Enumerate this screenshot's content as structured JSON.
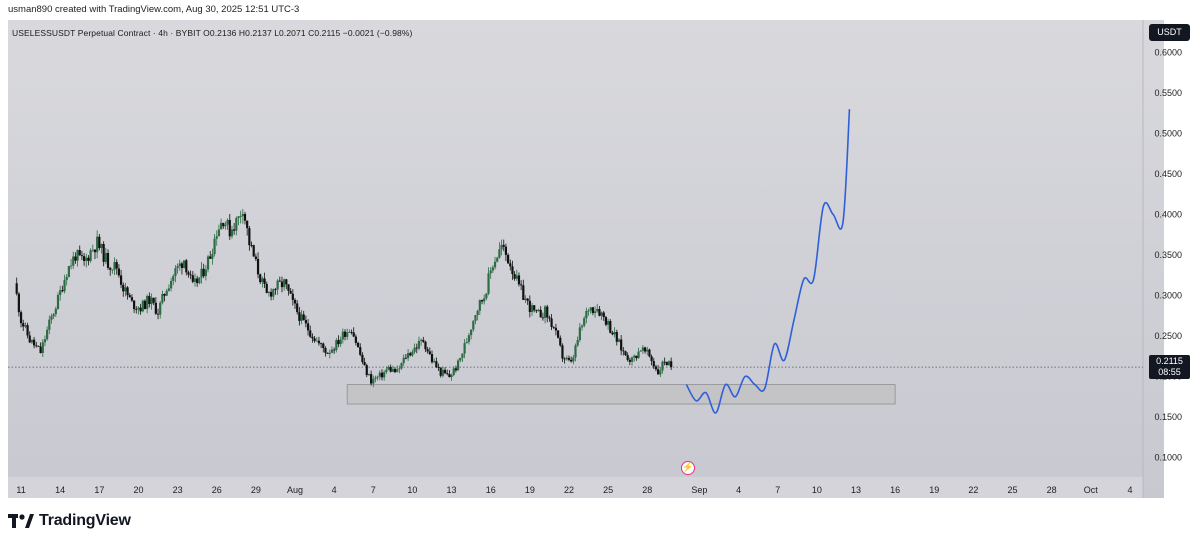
{
  "caption": "usman890 created with TradingView.com, Aug 30, 2025 12:51 UTC-3",
  "header": {
    "symbol_line": "USELESSUSDT Perpetual Contract · 4h · BYBIT  O0.2136  H0.2137  L0.2071  C0.2115  −0.0021 (−0.98%)",
    "currency": "USDT"
  },
  "price_label": {
    "price": "0.2115",
    "countdown": "08:55"
  },
  "logo_text": "TradingView",
  "icons": {
    "logo": "tradingview-logo-icon",
    "event": "lightning-icon"
  },
  "colors": {
    "up": "#2d6b45",
    "down": "#111111",
    "projection": "#2f5fd8",
    "zone_fill": "#c4c4c6"
  },
  "chart_data": {
    "type": "candlestick",
    "title": "",
    "xlabel": "",
    "ylabel": "",
    "y_scale": "linear",
    "ylim": [
      0.05,
      0.64
    ],
    "yticks": [
      0.1,
      0.15,
      0.2,
      0.25,
      0.3,
      0.35,
      0.4,
      0.45,
      0.5,
      0.55,
      0.6
    ],
    "ytick_labels": [
      "0.1000",
      "0.1500",
      "0.2000",
      "0.2500",
      "0.3000",
      "0.3500",
      "0.4000",
      "0.4500",
      "0.5000",
      "0.5500",
      "0.6000"
    ],
    "xlim": [
      "2025-07-10",
      "2025-10-05"
    ],
    "xticks": [
      {
        "label": "11",
        "date": "2025-07-11"
      },
      {
        "label": "14",
        "date": "2025-07-14"
      },
      {
        "label": "17",
        "date": "2025-07-17"
      },
      {
        "label": "20",
        "date": "2025-07-20"
      },
      {
        "label": "23",
        "date": "2025-07-23"
      },
      {
        "label": "26",
        "date": "2025-07-26"
      },
      {
        "label": "29",
        "date": "2025-07-29"
      },
      {
        "label": "Aug",
        "date": "2025-08-01"
      },
      {
        "label": "4",
        "date": "2025-08-04"
      },
      {
        "label": "7",
        "date": "2025-08-07"
      },
      {
        "label": "10",
        "date": "2025-08-10"
      },
      {
        "label": "13",
        "date": "2025-08-13"
      },
      {
        "label": "16",
        "date": "2025-08-16"
      },
      {
        "label": "19",
        "date": "2025-08-19"
      },
      {
        "label": "22",
        "date": "2025-08-22"
      },
      {
        "label": "25",
        "date": "2025-08-25"
      },
      {
        "label": "28",
        "date": "2025-08-28"
      },
      {
        "label": "Sep",
        "date": "2025-09-01"
      },
      {
        "label": "4",
        "date": "2025-09-04"
      },
      {
        "label": "7",
        "date": "2025-09-07"
      },
      {
        "label": "10",
        "date": "2025-09-10"
      },
      {
        "label": "13",
        "date": "2025-09-13"
      },
      {
        "label": "16",
        "date": "2025-09-16"
      },
      {
        "label": "19",
        "date": "2025-09-19"
      },
      {
        "label": "22",
        "date": "2025-09-22"
      },
      {
        "label": "25",
        "date": "2025-09-25"
      },
      {
        "label": "28",
        "date": "2025-09-28"
      },
      {
        "label": "Oct",
        "date": "2025-10-01"
      },
      {
        "label": "4",
        "date": "2025-10-04"
      }
    ],
    "close_path": [
      [
        "2025-07-10T12:00",
        0.315
      ],
      [
        "2025-07-11T00:00",
        0.27
      ],
      [
        "2025-07-11T16:00",
        0.245
      ],
      [
        "2025-07-12T12:00",
        0.23
      ],
      [
        "2025-07-13T04:00",
        0.265
      ],
      [
        "2025-07-13T20:00",
        0.295
      ],
      [
        "2025-07-14T12:00",
        0.33
      ],
      [
        "2025-07-15T04:00",
        0.35
      ],
      [
        "2025-07-15T20:00",
        0.34
      ],
      [
        "2025-07-16T08:00",
        0.355
      ],
      [
        "2025-07-16T20:00",
        0.365
      ],
      [
        "2025-07-17T16:00",
        0.34
      ],
      [
        "2025-07-18T08:00",
        0.335
      ],
      [
        "2025-07-18T20:00",
        0.31
      ],
      [
        "2025-07-19T12:00",
        0.29
      ],
      [
        "2025-07-20T04:00",
        0.285
      ],
      [
        "2025-07-20T20:00",
        0.295
      ],
      [
        "2025-07-21T12:00",
        0.28
      ],
      [
        "2025-07-22T04:00",
        0.31
      ],
      [
        "2025-07-22T20:00",
        0.33
      ],
      [
        "2025-07-23T12:00",
        0.345
      ],
      [
        "2025-07-24T04:00",
        0.31
      ],
      [
        "2025-07-24T20:00",
        0.325
      ],
      [
        "2025-07-25T12:00",
        0.35
      ],
      [
        "2025-07-26T00:00",
        0.38
      ],
      [
        "2025-07-26T12:00",
        0.395
      ],
      [
        "2025-07-27T00:00",
        0.38
      ],
      [
        "2025-07-27T16:00",
        0.395
      ],
      [
        "2025-07-28T00:00",
        0.41
      ],
      [
        "2025-07-28T12:00",
        0.365
      ],
      [
        "2025-07-29T04:00",
        0.33
      ],
      [
        "2025-07-29T20:00",
        0.3
      ],
      [
        "2025-07-30T12:00",
        0.31
      ],
      [
        "2025-07-31T04:00",
        0.315
      ],
      [
        "2025-07-31T20:00",
        0.29
      ],
      [
        "2025-08-01T12:00",
        0.27
      ],
      [
        "2025-08-02T04:00",
        0.255
      ],
      [
        "2025-08-02T20:00",
        0.24
      ],
      [
        "2025-08-03T12:00",
        0.23
      ],
      [
        "2025-08-04T04:00",
        0.24
      ],
      [
        "2025-08-04T20:00",
        0.255
      ],
      [
        "2025-08-05T08:00",
        0.26
      ],
      [
        "2025-08-05T20:00",
        0.235
      ],
      [
        "2025-08-06T08:00",
        0.21
      ],
      [
        "2025-08-06T20:00",
        0.195
      ],
      [
        "2025-08-07T12:00",
        0.2
      ],
      [
        "2025-08-08T04:00",
        0.21
      ],
      [
        "2025-08-08T20:00",
        0.205
      ],
      [
        "2025-08-09T12:00",
        0.225
      ],
      [
        "2025-08-10T04:00",
        0.235
      ],
      [
        "2025-08-10T20:00",
        0.245
      ],
      [
        "2025-08-11T12:00",
        0.22
      ],
      [
        "2025-08-12T04:00",
        0.205
      ],
      [
        "2025-08-12T20:00",
        0.2
      ],
      [
        "2025-08-13T12:00",
        0.215
      ],
      [
        "2025-08-14T04:00",
        0.245
      ],
      [
        "2025-08-14T20:00",
        0.28
      ],
      [
        "2025-08-15T12:00",
        0.3
      ],
      [
        "2025-08-16T04:00",
        0.34
      ],
      [
        "2025-08-16T20:00",
        0.36
      ],
      [
        "2025-08-17T12:00",
        0.34
      ],
      [
        "2025-08-18T04:00",
        0.31
      ],
      [
        "2025-08-18T20:00",
        0.29
      ],
      [
        "2025-08-19T12:00",
        0.275
      ],
      [
        "2025-08-20T04:00",
        0.28
      ],
      [
        "2025-08-20T20:00",
        0.26
      ],
      [
        "2025-08-21T12:00",
        0.225
      ],
      [
        "2025-08-22T04:00",
        0.215
      ],
      [
        "2025-08-22T20:00",
        0.255
      ],
      [
        "2025-08-23T12:00",
        0.285
      ],
      [
        "2025-08-24T04:00",
        0.285
      ],
      [
        "2025-08-24T20:00",
        0.27
      ],
      [
        "2025-08-25T12:00",
        0.25
      ],
      [
        "2025-08-26T04:00",
        0.23
      ],
      [
        "2025-08-26T20:00",
        0.22
      ],
      [
        "2025-08-27T12:00",
        0.235
      ],
      [
        "2025-08-28T04:00",
        0.225
      ],
      [
        "2025-08-28T20:00",
        0.205
      ],
      [
        "2025-08-29T08:00",
        0.22
      ],
      [
        "2025-08-29T20:00",
        0.2115
      ]
    ],
    "last_price": 0.2115,
    "support_zone": {
      "from": "2025-08-05",
      "to": "2025-09-16",
      "low": 0.166,
      "high": 0.19
    },
    "projection": [
      [
        "2025-08-31T00:00",
        0.19
      ],
      [
        "2025-08-31T18:00",
        0.17
      ],
      [
        "2025-09-01T12:00",
        0.18
      ],
      [
        "2025-09-02T06:00",
        0.155
      ],
      [
        "2025-09-03T00:00",
        0.19
      ],
      [
        "2025-09-03T18:00",
        0.175
      ],
      [
        "2025-09-04T12:00",
        0.2
      ],
      [
        "2025-09-05T06:00",
        0.19
      ],
      [
        "2025-09-06T00:00",
        0.185
      ],
      [
        "2025-09-06T18:00",
        0.24
      ],
      [
        "2025-09-07T12:00",
        0.22
      ],
      [
        "2025-09-08T06:00",
        0.27
      ],
      [
        "2025-09-09T00:00",
        0.32
      ],
      [
        "2025-09-09T18:00",
        0.32
      ],
      [
        "2025-09-10T12:00",
        0.41
      ],
      [
        "2025-09-11T06:00",
        0.4
      ],
      [
        "2025-09-12T00:00",
        0.39
      ],
      [
        "2025-09-12T12:00",
        0.53
      ]
    ]
  }
}
